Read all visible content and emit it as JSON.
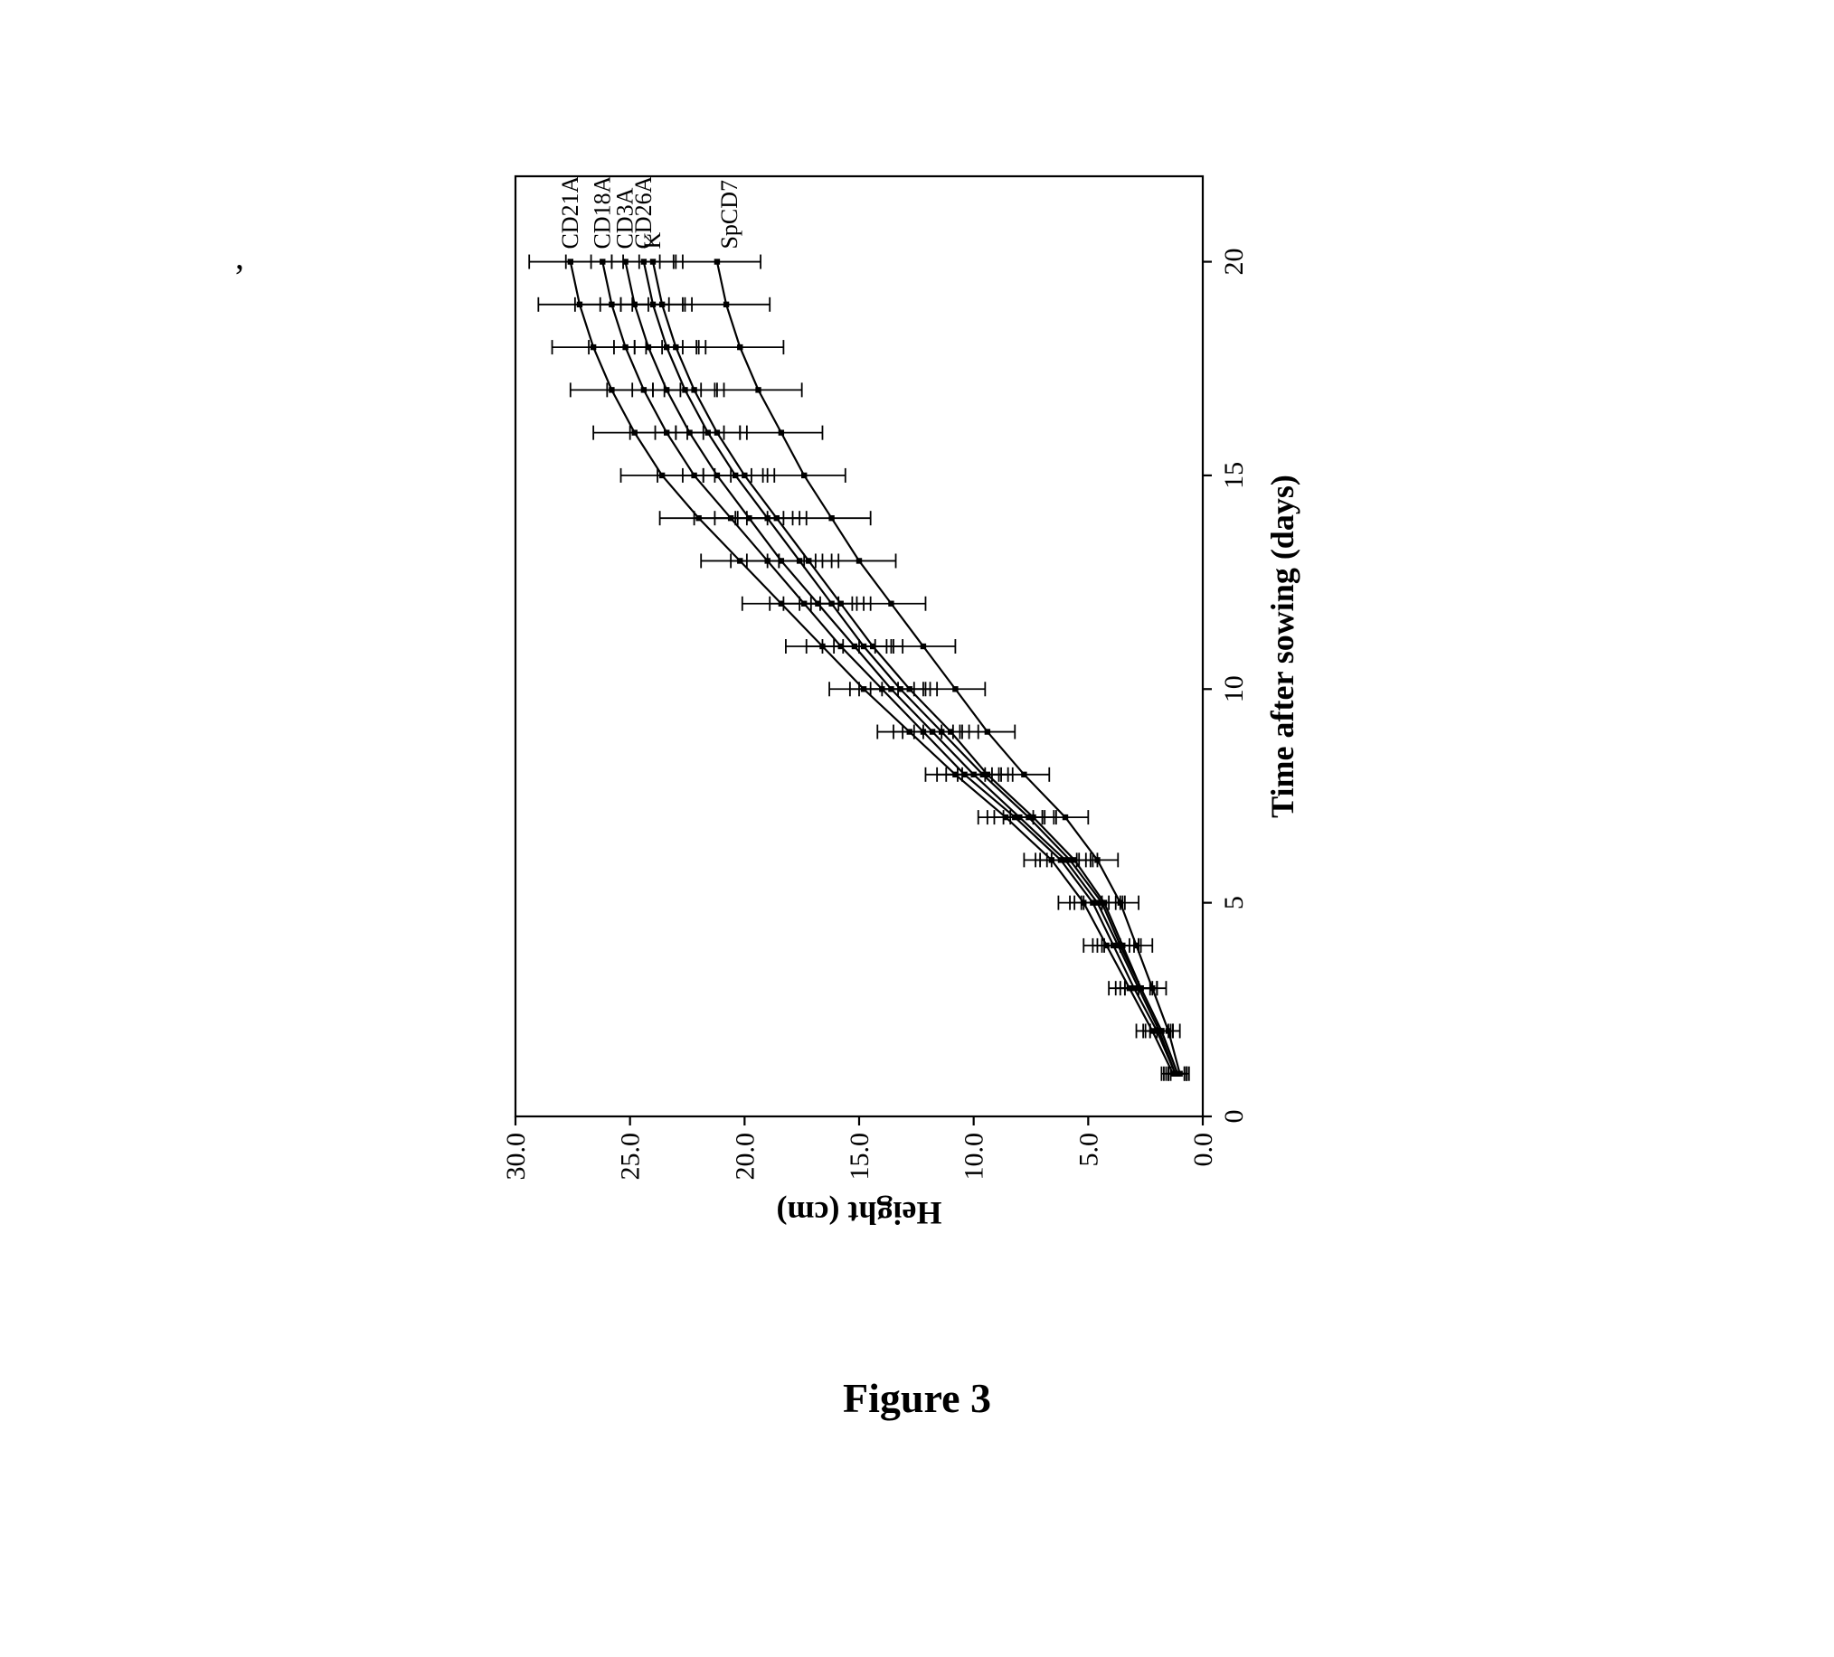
{
  "figure_caption": "Figure 3",
  "chart": {
    "type": "line-with-errorbars",
    "rotation_deg": -90,
    "native_plot_width": 1040,
    "native_plot_height": 760,
    "background_color": "#ffffff",
    "axis_color": "#000000",
    "axis_line_width": 2.2,
    "line_color": "#000000",
    "line_width": 2.2,
    "errorbar_color": "#000000",
    "errorbar_cap_halfwidth": 8,
    "x": {
      "label": "Time after sowing (days)",
      "label_fontsize": 36,
      "label_bold": true,
      "min": 0,
      "max": 22,
      "ticks": [
        0,
        5,
        10,
        15,
        20
      ],
      "tick_fontsize": 30
    },
    "y": {
      "label": "Height (cm)",
      "label_fontsize": 36,
      "label_bold": true,
      "min": 0,
      "max": 30,
      "ticks": [
        0.0,
        5.0,
        10.0,
        15.0,
        20.0,
        25.0,
        30.0
      ],
      "tick_labels": [
        "0.0",
        "5.0",
        "10.0",
        "15.0",
        "20.0",
        "25.0",
        "30.0"
      ],
      "tick_fontsize": 30
    },
    "series_labels": [
      "CD21A",
      "CD18A",
      "CD3A",
      "CD26A",
      "K",
      "SpCD7"
    ],
    "series_label_fontsize": 26,
    "series_label_gap_after_K": 14,
    "x_days": [
      1,
      2,
      3,
      4,
      5,
      6,
      7,
      8,
      9,
      10,
      11,
      12,
      13,
      14,
      15,
      16,
      17,
      18,
      19,
      20
    ],
    "series": {
      "CD21A": {
        "y": [
          1.3,
          2.2,
          3.2,
          4.2,
          5.2,
          6.6,
          8.6,
          10.8,
          12.8,
          14.8,
          16.6,
          18.4,
          20.2,
          22.0,
          23.6,
          24.8,
          25.8,
          26.6,
          27.2,
          27.6
        ],
        "err": [
          0.5,
          0.7,
          0.9,
          1.0,
          1.1,
          1.2,
          1.2,
          1.3,
          1.4,
          1.5,
          1.6,
          1.7,
          1.7,
          1.7,
          1.8,
          1.8,
          1.8,
          1.8,
          1.8,
          1.8
        ]
      },
      "CD18A": {
        "y": [
          1.2,
          2.0,
          3.0,
          3.9,
          4.8,
          6.2,
          8.2,
          10.4,
          12.2,
          14.0,
          15.8,
          17.4,
          19.0,
          20.6,
          22.2,
          23.4,
          24.4,
          25.2,
          25.8,
          26.2
        ],
        "err": [
          0.5,
          0.6,
          0.8,
          0.9,
          1.0,
          1.1,
          1.2,
          1.2,
          1.3,
          1.4,
          1.5,
          1.5,
          1.6,
          1.6,
          1.6,
          1.6,
          1.6,
          1.6,
          1.6,
          1.6
        ]
      },
      "CD3A": {
        "y": [
          1.2,
          1.9,
          2.8,
          3.7,
          4.6,
          6.0,
          8.0,
          10.0,
          11.8,
          13.6,
          15.2,
          16.8,
          18.4,
          19.8,
          21.2,
          22.4,
          23.4,
          24.2,
          24.8,
          25.2
        ],
        "err": [
          0.4,
          0.6,
          0.8,
          0.9,
          1.0,
          1.1,
          1.1,
          1.2,
          1.3,
          1.4,
          1.4,
          1.5,
          1.5,
          1.5,
          1.5,
          1.5,
          1.5,
          1.5,
          1.5,
          1.5
        ]
      },
      "CD26A": {
        "y": [
          1.1,
          1.8,
          2.7,
          3.6,
          4.4,
          5.8,
          7.6,
          9.6,
          11.4,
          13.2,
          14.8,
          16.2,
          17.6,
          19.0,
          20.4,
          21.6,
          22.6,
          23.4,
          24.0,
          24.4
        ],
        "err": [
          0.4,
          0.5,
          0.7,
          0.8,
          0.9,
          1.0,
          1.1,
          1.1,
          1.2,
          1.3,
          1.3,
          1.4,
          1.4,
          1.4,
          1.4,
          1.4,
          1.4,
          1.4,
          1.4,
          1.4
        ]
      },
      "K": {
        "y": [
          1.1,
          1.8,
          2.7,
          3.5,
          4.3,
          5.6,
          7.4,
          9.4,
          11.0,
          12.8,
          14.4,
          15.8,
          17.2,
          18.6,
          20.0,
          21.2,
          22.2,
          23.0,
          23.6,
          24.0
        ],
        "err": [
          0.4,
          0.5,
          0.7,
          0.8,
          0.9,
          1.0,
          1.0,
          1.1,
          1.2,
          1.2,
          1.3,
          1.3,
          1.3,
          1.3,
          1.3,
          1.3,
          1.3,
          1.3,
          1.3,
          1.3
        ]
      },
      "SpCD7": {
        "y": [
          1.0,
          1.5,
          2.2,
          2.9,
          3.6,
          4.6,
          6.0,
          7.8,
          9.4,
          10.8,
          12.2,
          13.6,
          15.0,
          16.2,
          17.4,
          18.4,
          19.4,
          20.2,
          20.8,
          21.2
        ],
        "err": [
          0.4,
          0.5,
          0.6,
          0.7,
          0.8,
          0.9,
          1.0,
          1.1,
          1.2,
          1.3,
          1.4,
          1.5,
          1.6,
          1.7,
          1.8,
          1.8,
          1.9,
          1.9,
          1.9,
          1.9
        ]
      }
    }
  }
}
